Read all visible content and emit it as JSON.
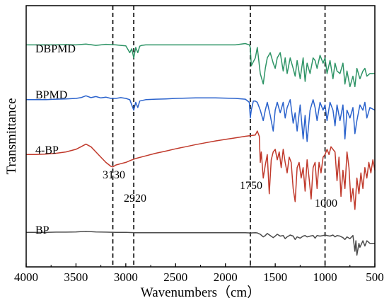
{
  "chart_data": {
    "type": "line",
    "title": "",
    "xlabel": "Wavenumbers（cm）",
    "ylabel": "Transmittance",
    "xlim": [
      4000,
      500
    ],
    "x_reversed": true,
    "xticks": [
      "4000",
      "3500",
      "3000",
      "2500",
      "2000",
      "1500",
      "1000",
      "500"
    ],
    "xtick_values": [
      4000,
      3500,
      3000,
      2500,
      2000,
      1500,
      1000,
      500
    ],
    "yticks": [],
    "grid": false,
    "legend": "none",
    "reference_lines": [
      {
        "x": 3130,
        "label": "3130"
      },
      {
        "x": 2920,
        "label": "2920"
      },
      {
        "x": 1750,
        "label": "1750"
      },
      {
        "x": 1000,
        "label": "1000"
      }
    ],
    "series": [
      {
        "name": "DBPMD",
        "color": "#2e9466",
        "x": [
          4000,
          3900,
          3800,
          3700,
          3600,
          3500,
          3400,
          3300,
          3200,
          3100,
          3050,
          3000,
          2960,
          2940,
          2920,
          2900,
          2880,
          2860,
          2840,
          2800,
          2700,
          2600,
          2500,
          2400,
          2300,
          2200,
          2100,
          2000,
          1900,
          1800,
          1760,
          1750,
          1740,
          1700,
          1680,
          1650,
          1620,
          1600,
          1580,
          1550,
          1520,
          1500,
          1480,
          1450,
          1420,
          1400,
          1380,
          1350,
          1320,
          1300,
          1280,
          1250,
          1220,
          1200,
          1180,
          1150,
          1120,
          1100,
          1080,
          1050,
          1020,
          1000,
          980,
          950,
          920,
          900,
          880,
          850,
          820,
          800,
          780,
          750,
          720,
          700,
          680,
          650,
          620,
          600,
          580,
          550,
          500
        ],
        "y": [
          0.85,
          0.85,
          0.85,
          0.85,
          0.851,
          0.85,
          0.853,
          0.848,
          0.852,
          0.85,
          0.848,
          0.846,
          0.82,
          0.835,
          0.8,
          0.84,
          0.82,
          0.845,
          0.848,
          0.85,
          0.85,
          0.85,
          0.85,
          0.85,
          0.85,
          0.85,
          0.85,
          0.85,
          0.85,
          0.855,
          0.85,
          0.84,
          0.77,
          0.8,
          0.84,
          0.74,
          0.7,
          0.76,
          0.8,
          0.82,
          0.78,
          0.76,
          0.8,
          0.82,
          0.75,
          0.8,
          0.74,
          0.8,
          0.76,
          0.73,
          0.79,
          0.72,
          0.8,
          0.71,
          0.78,
          0.74,
          0.8,
          0.79,
          0.76,
          0.81,
          0.78,
          0.8,
          0.74,
          0.79,
          0.72,
          0.78,
          0.75,
          0.74,
          0.78,
          0.7,
          0.75,
          0.69,
          0.73,
          0.69,
          0.76,
          0.72,
          0.75,
          0.76,
          0.73,
          0.74,
          0.74
        ]
      },
      {
        "name": "BPMD",
        "color": "#2a62cc",
        "x": [
          4000,
          3900,
          3800,
          3700,
          3600,
          3500,
          3450,
          3400,
          3350,
          3300,
          3250,
          3200,
          3150,
          3100,
          3050,
          3000,
          2960,
          2940,
          2920,
          2900,
          2880,
          2860,
          2800,
          2700,
          2600,
          2500,
          2400,
          2300,
          2200,
          2100,
          2000,
          1900,
          1800,
          1760,
          1750,
          1740,
          1720,
          1700,
          1680,
          1650,
          1620,
          1600,
          1580,
          1550,
          1520,
          1500,
          1480,
          1450,
          1420,
          1400,
          1380,
          1350,
          1320,
          1300,
          1280,
          1250,
          1220,
          1200,
          1180,
          1150,
          1120,
          1100,
          1080,
          1050,
          1020,
          1000,
          980,
          950,
          920,
          900,
          880,
          850,
          820,
          800,
          780,
          750,
          720,
          700,
          680,
          650,
          620,
          600,
          580,
          550,
          500
        ],
        "y": [
          0.64,
          0.64,
          0.64,
          0.642,
          0.643,
          0.645,
          0.648,
          0.655,
          0.648,
          0.652,
          0.647,
          0.65,
          0.645,
          0.645,
          0.648,
          0.645,
          0.64,
          0.62,
          0.6,
          0.63,
          0.61,
          0.635,
          0.64,
          0.642,
          0.643,
          0.645,
          0.646,
          0.647,
          0.647,
          0.647,
          0.646,
          0.645,
          0.642,
          0.63,
          0.57,
          0.6,
          0.635,
          0.635,
          0.63,
          0.6,
          0.56,
          0.6,
          0.63,
          0.58,
          0.52,
          0.6,
          0.63,
          0.59,
          0.63,
          0.57,
          0.61,
          0.64,
          0.55,
          0.59,
          0.52,
          0.62,
          0.49,
          0.58,
          0.48,
          0.6,
          0.64,
          0.61,
          0.56,
          0.63,
          0.6,
          0.62,
          0.56,
          0.63,
          0.6,
          0.54,
          0.62,
          0.56,
          0.62,
          0.49,
          0.6,
          0.57,
          0.61,
          0.51,
          0.56,
          0.62,
          0.6,
          0.63,
          0.57,
          0.61,
          0.6
        ]
      },
      {
        "name": "4-BP",
        "color": "#c0392b",
        "x": [
          4000,
          3900,
          3800,
          3700,
          3600,
          3500,
          3450,
          3400,
          3350,
          3300,
          3250,
          3200,
          3150,
          3130,
          3100,
          3050,
          3000,
          2950,
          2900,
          2800,
          2700,
          2600,
          2500,
          2400,
          2300,
          2200,
          2100,
          2000,
          1900,
          1800,
          1700,
          1680,
          1660,
          1650,
          1640,
          1620,
          1600,
          1580,
          1560,
          1540,
          1520,
          1500,
          1480,
          1460,
          1440,
          1420,
          1400,
          1380,
          1360,
          1340,
          1320,
          1300,
          1280,
          1260,
          1240,
          1220,
          1200,
          1180,
          1160,
          1140,
          1120,
          1100,
          1080,
          1060,
          1040,
          1020,
          1000,
          980,
          960,
          940,
          920,
          900,
          880,
          860,
          840,
          820,
          800,
          780,
          760,
          740,
          720,
          700,
          680,
          660,
          640,
          620,
          600,
          580,
          560,
          540,
          520,
          500
        ],
        "y": [
          0.43,
          0.43,
          0.432,
          0.435,
          0.44,
          0.45,
          0.46,
          0.47,
          0.46,
          0.44,
          0.42,
          0.4,
          0.385,
          0.383,
          0.39,
          0.395,
          0.4,
          0.408,
          0.415,
          0.425,
          0.435,
          0.443,
          0.452,
          0.46,
          0.468,
          0.475,
          0.482,
          0.488,
          0.494,
          0.5,
          0.505,
          0.52,
          0.5,
          0.4,
          0.44,
          0.34,
          0.39,
          0.43,
          0.28,
          0.41,
          0.44,
          0.45,
          0.41,
          0.44,
          0.38,
          0.45,
          0.4,
          0.36,
          0.42,
          0.4,
          0.3,
          0.25,
          0.38,
          0.4,
          0.34,
          0.38,
          0.29,
          0.41,
          0.34,
          0.26,
          0.38,
          0.4,
          0.3,
          0.4,
          0.36,
          0.42,
          0.43,
          0.45,
          0.43,
          0.46,
          0.45,
          0.44,
          0.33,
          0.42,
          0.27,
          0.37,
          0.3,
          0.44,
          0.38,
          0.25,
          0.3,
          0.22,
          0.34,
          0.28,
          0.36,
          0.3,
          0.38,
          0.34,
          0.4,
          0.36,
          0.41,
          0.37
        ]
      },
      {
        "name": "BP",
        "color": "#4a4a4a",
        "x": [
          4000,
          3900,
          3800,
          3700,
          3600,
          3500,
          3400,
          3300,
          3200,
          3100,
          3000,
          2900,
          2800,
          2700,
          2600,
          2500,
          2400,
          2300,
          2200,
          2100,
          2000,
          1900,
          1800,
          1760,
          1750,
          1740,
          1700,
          1680,
          1650,
          1620,
          1600,
          1580,
          1550,
          1520,
          1500,
          1480,
          1450,
          1420,
          1400,
          1380,
          1350,
          1320,
          1300,
          1280,
          1250,
          1220,
          1200,
          1180,
          1150,
          1120,
          1100,
          1080,
          1050,
          1020,
          1000,
          980,
          950,
          920,
          900,
          880,
          850,
          820,
          800,
          780,
          750,
          720,
          700,
          690,
          680,
          660,
          650,
          620,
          600,
          580,
          550,
          500
        ],
        "y": [
          0.132,
          0.132,
          0.132,
          0.133,
          0.133,
          0.134,
          0.136,
          0.134,
          0.133,
          0.132,
          0.132,
          0.131,
          0.131,
          0.131,
          0.131,
          0.131,
          0.131,
          0.131,
          0.131,
          0.131,
          0.131,
          0.131,
          0.131,
          0.13,
          0.126,
          0.13,
          0.131,
          0.13,
          0.125,
          0.115,
          0.12,
          0.128,
          0.12,
          0.112,
          0.118,
          0.125,
          0.118,
          0.12,
          0.108,
          0.115,
          0.122,
          0.118,
          0.105,
          0.115,
          0.11,
          0.118,
          0.12,
          0.115,
          0.118,
          0.12,
          0.11,
          0.12,
          0.118,
          0.12,
          0.122,
          0.12,
          0.118,
          0.122,
          0.115,
          0.12,
          0.118,
          0.112,
          0.105,
          0.115,
          0.108,
          0.12,
          0.06,
          0.1,
          0.045,
          0.09,
          0.075,
          0.1,
          0.08,
          0.1,
          0.09,
          0.09
        ]
      }
    ]
  }
}
